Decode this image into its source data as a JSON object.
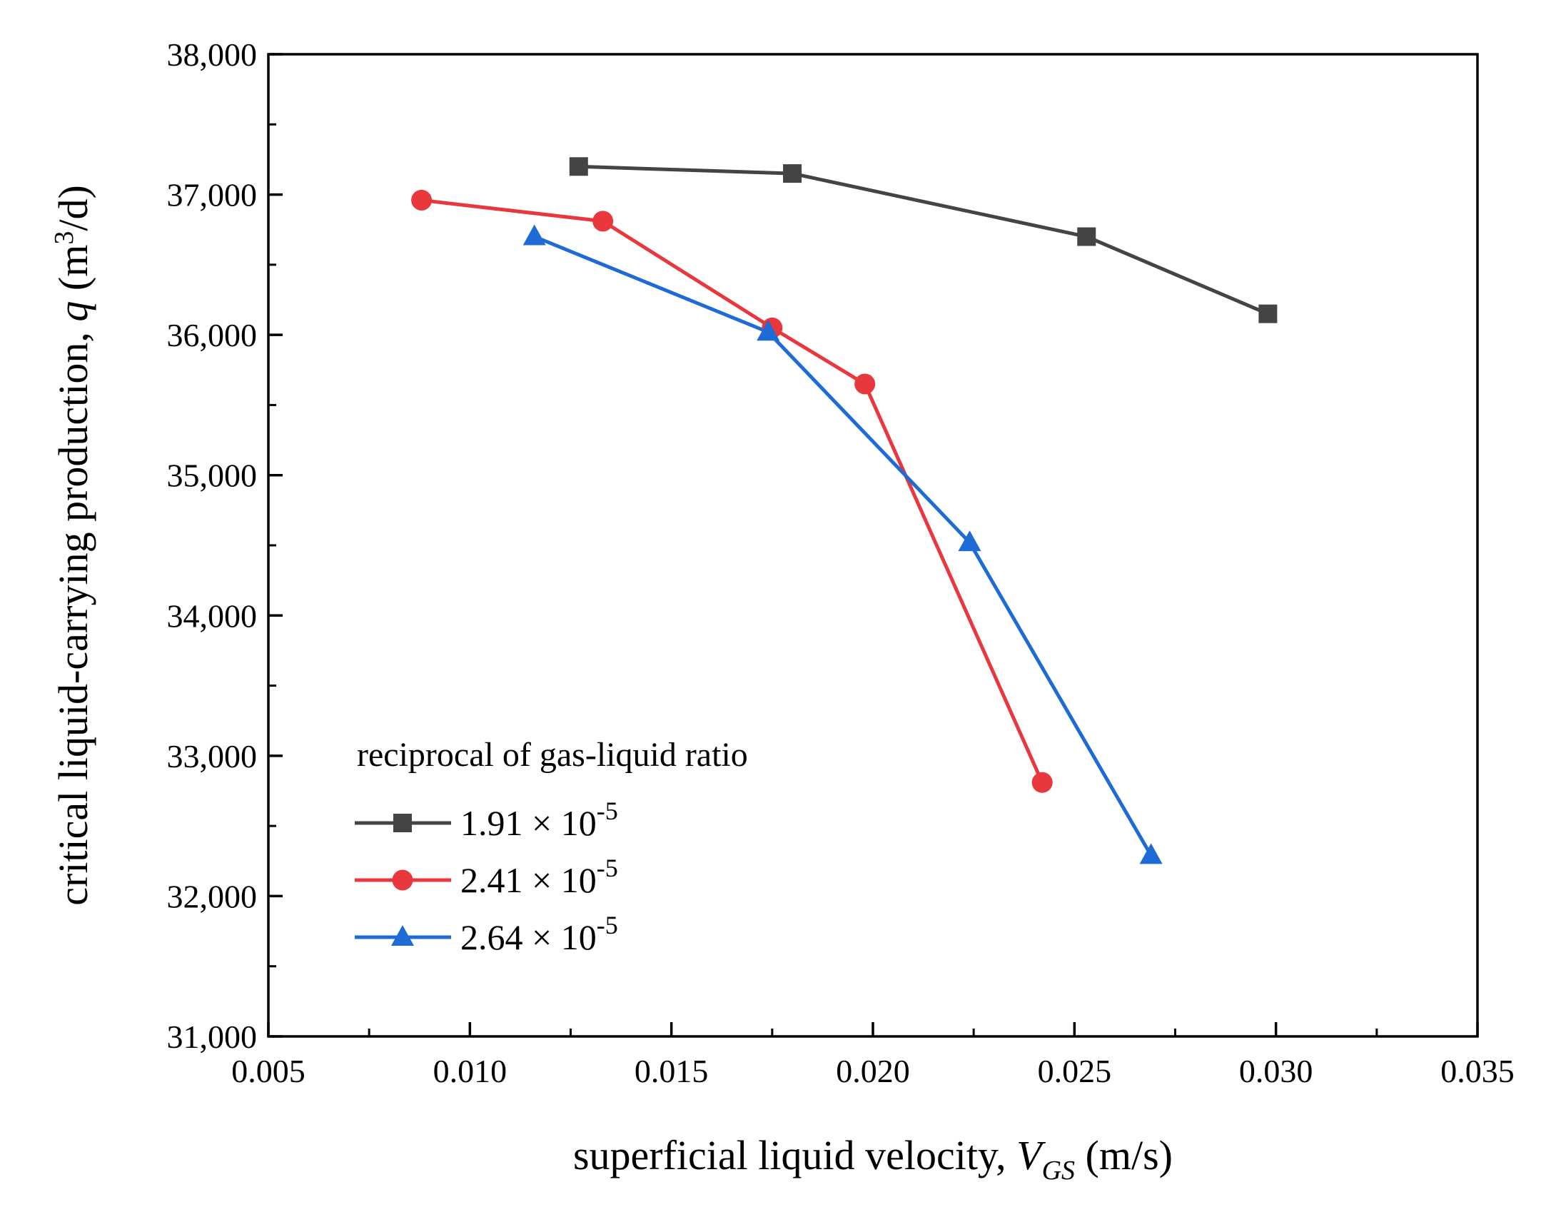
{
  "chart_data": {
    "type": "line",
    "title": "",
    "xlabel": {
      "prefix": "superficial liquid velocity, ",
      "var": "V",
      "sub": "GS",
      "suffix": " (m/s)"
    },
    "ylabel": {
      "prefix": "critical liquid-carrying production, ",
      "var": "q",
      "unit_open": " (m",
      "sup": "3",
      "unit_close": "/d)"
    },
    "xlim": [
      0.005,
      0.035
    ],
    "ylim": [
      31000,
      38000
    ],
    "x_ticks": [
      0.005,
      0.01,
      0.015,
      0.02,
      0.025,
      0.03,
      0.035
    ],
    "x_tick_labels": [
      "0.005",
      "0.010",
      "0.015",
      "0.020",
      "0.025",
      "0.030",
      "0.035"
    ],
    "y_ticks": [
      31000,
      32000,
      33000,
      34000,
      35000,
      36000,
      37000,
      38000
    ],
    "y_tick_labels": [
      "31,000",
      "32,000",
      "33,000",
      "34,000",
      "35,000",
      "36,000",
      "37,000",
      "38,000"
    ],
    "grid": false,
    "legend": {
      "title": "reciprocal of gas-liquid ratio",
      "placement": "bottom-left"
    },
    "series": [
      {
        "name": "1.91 × 10-5",
        "label_base": "1.91 × 10",
        "label_exp": "-5",
        "color": "#444444",
        "marker": "square",
        "x": [
          0.0127,
          0.018,
          0.0253,
          0.0298
        ],
        "y": [
          37200,
          37150,
          36700,
          36150
        ]
      },
      {
        "name": "2.41 × 10-5",
        "label_base": "2.41 × 10",
        "label_exp": "-5",
        "color": "#e8383d",
        "marker": "circle",
        "x": [
          0.0088,
          0.0133,
          0.0175,
          0.0198,
          0.0242
        ],
        "y": [
          36960,
          36810,
          36050,
          35650,
          32810
        ]
      },
      {
        "name": "2.64 × 10-5",
        "label_base": "2.64 × 10",
        "label_exp": "-5",
        "color": "#1f6bd6",
        "marker": "triangle",
        "x": [
          0.0116,
          0.0174,
          0.0224,
          0.0269
        ],
        "y": [
          36700,
          36020,
          34520,
          32290
        ]
      }
    ]
  }
}
